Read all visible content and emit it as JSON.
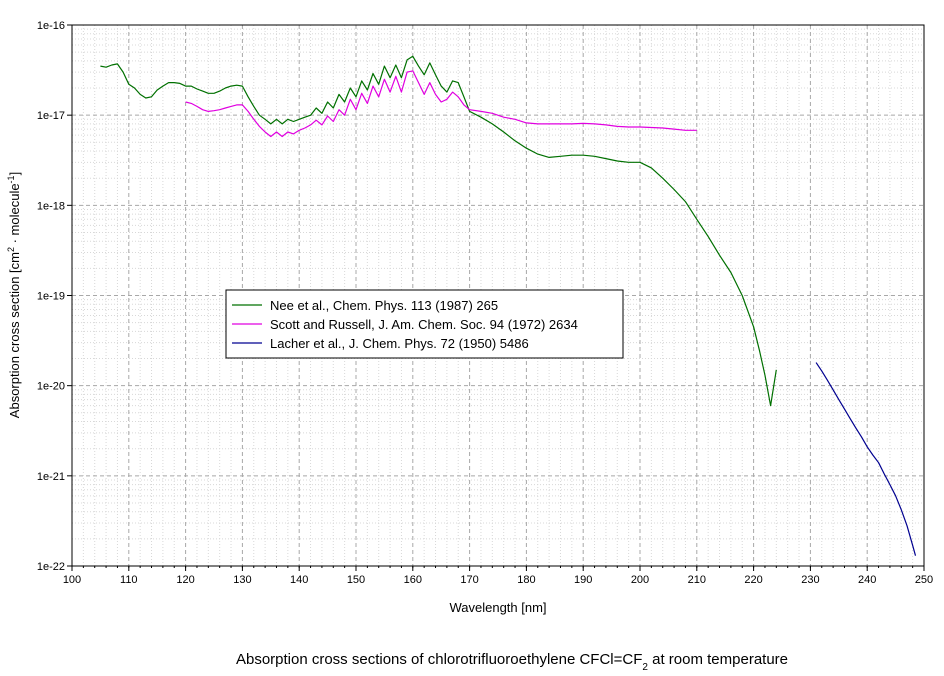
{
  "chart_data": {
    "type": "line",
    "xlabel": "Wavelength [nm]",
    "ylabel": {
      "parts": [
        {
          "text": "Absorption cross section [cm"
        },
        {
          "text": "2",
          "sup": true
        },
        {
          "text": " · molecule"
        },
        {
          "text": "-1",
          "sup": true
        },
        {
          "text": "]"
        }
      ]
    },
    "caption": {
      "parts": [
        {
          "text": "Absorption cross sections of chlorotrifluoroethylene CFCl=CF"
        },
        {
          "text": "2",
          "sub": true
        },
        {
          "text": " at room temperature"
        }
      ]
    },
    "x_axis": {
      "min": 100,
      "max": 250,
      "major_step": 10,
      "minor_step": 2,
      "ticks": [
        "100",
        "110",
        "120",
        "130",
        "140",
        "150",
        "160",
        "170",
        "180",
        "190",
        "200",
        "210",
        "220",
        "230",
        "240",
        "250"
      ]
    },
    "y_axis": {
      "scale": "log",
      "min_exp": -22,
      "max_exp": -16,
      "ticks": [
        "1e-22",
        "1e-21",
        "1e-20",
        "1e-19",
        "1e-18",
        "1e-17",
        "1e-16"
      ]
    },
    "grid": true,
    "legend": {
      "placement": "center-left",
      "entries": [
        {
          "label": "Nee et al., Chem. Phys. 113 (1987) 265",
          "color": "#007000"
        },
        {
          "label": "Scott and Russell, J. Am. Chem. Soc. 94 (1972) 2634",
          "color": "#E000E0"
        },
        {
          "label": "Lacher et al., J. Chem. Phys. 72 (1950) 5486",
          "color": "#000090"
        }
      ]
    },
    "series": [
      {
        "name": "Nee et al., Chem. Phys. 113 (1987) 265",
        "color": "#007000",
        "x": [
          105,
          106,
          107,
          108,
          109,
          110,
          111,
          112,
          113,
          114,
          115,
          116,
          117,
          118,
          119,
          120,
          121,
          122,
          123,
          124,
          125,
          126,
          127,
          128,
          129,
          130,
          131,
          132,
          133,
          134,
          135,
          136,
          137,
          138,
          139,
          140,
          141,
          142,
          143,
          144,
          145,
          146,
          147,
          148,
          149,
          150,
          151,
          152,
          153,
          154,
          155,
          156,
          157,
          158,
          159,
          160,
          161,
          162,
          163,
          164,
          165,
          166,
          167,
          168,
          169,
          170,
          172,
          174,
          176,
          178,
          180,
          182,
          184,
          186,
          188,
          190,
          192,
          194,
          196,
          198,
          200,
          202,
          204,
          206,
          208,
          210,
          212,
          214,
          216,
          218,
          220,
          221,
          222,
          223,
          224
        ],
        "y": [
          3.5e-17,
          3.4e-17,
          3.6e-17,
          3.7e-17,
          3e-17,
          2.2e-17,
          2e-17,
          1.7e-17,
          1.55e-17,
          1.6e-17,
          1.9e-17,
          2.1e-17,
          2.3e-17,
          2.3e-17,
          2.25e-17,
          2.1e-17,
          2.1e-17,
          1.95e-17,
          1.85e-17,
          1.75e-17,
          1.75e-17,
          1.85e-17,
          2e-17,
          2.1e-17,
          2.15e-17,
          2.1e-17,
          1.6e-17,
          1.25e-17,
          1e-17,
          9e-18,
          8e-18,
          9e-18,
          8e-18,
          9e-18,
          8.5e-18,
          9e-18,
          9.5e-18,
          1e-17,
          1.2e-17,
          1.05e-17,
          1.4e-17,
          1.2e-17,
          1.7e-17,
          1.4e-17,
          2e-17,
          1.6e-17,
          2.4e-17,
          1.9e-17,
          2.9e-17,
          2.2e-17,
          3.5e-17,
          2.6e-17,
          3.6e-17,
          2.6e-17,
          4.1e-17,
          4.5e-17,
          3.5e-17,
          2.8e-17,
          3.8e-17,
          2.8e-17,
          2.1e-17,
          1.8e-17,
          2.4e-17,
          2.3e-17,
          1.6e-17,
          1.1e-17,
          9.5e-18,
          8e-18,
          6.5e-18,
          5.2e-18,
          4.3e-18,
          3.7e-18,
          3.4e-18,
          3.5e-18,
          3.6e-18,
          3.6e-18,
          3.5e-18,
          3.3e-18,
          3.1e-18,
          3e-18,
          3e-18,
          2.6e-18,
          2e-18,
          1.5e-18,
          1.1e-18,
          7e-19,
          4.5e-19,
          2.8e-19,
          1.8e-19,
          1e-19,
          4.5e-20,
          2.5e-20,
          1.3e-20,
          6e-21,
          1.5e-20
        ]
      },
      {
        "name": "Scott and Russell, J. Am. Chem. Soc. 94 (1972) 2634",
        "color": "#E000E0",
        "x": [
          120,
          121,
          122,
          123,
          124,
          125,
          126,
          127,
          128,
          129,
          130,
          131,
          132,
          133,
          134,
          135,
          136,
          137,
          138,
          139,
          140,
          141,
          142,
          143,
          144,
          145,
          146,
          147,
          148,
          149,
          150,
          151,
          152,
          153,
          154,
          155,
          156,
          157,
          158,
          159,
          160,
          161,
          162,
          163,
          164,
          165,
          166,
          167,
          168,
          169,
          170,
          172,
          174,
          176,
          178,
          180,
          182,
          184,
          186,
          188,
          190,
          192,
          194,
          196,
          198,
          200,
          202,
          204,
          206,
          208,
          210
        ],
        "y": [
          1.4e-17,
          1.35e-17,
          1.25e-17,
          1.15e-17,
          1.1e-17,
          1.12e-17,
          1.15e-17,
          1.2e-17,
          1.25e-17,
          1.3e-17,
          1.3e-17,
          1.1e-17,
          9e-18,
          7.5e-18,
          6.5e-18,
          5.8e-18,
          6.5e-18,
          5.8e-18,
          6.5e-18,
          6.2e-18,
          6.8e-18,
          7.2e-18,
          7.8e-18,
          8.8e-18,
          7.8e-18,
          9.8e-18,
          8.5e-18,
          1.15e-17,
          1e-17,
          1.5e-17,
          1.15e-17,
          1.75e-17,
          1.35e-17,
          2.1e-17,
          1.6e-17,
          2.5e-17,
          1.8e-17,
          2.7e-17,
          1.8e-17,
          3e-17,
          3.1e-17,
          2.3e-17,
          1.7e-17,
          2.3e-17,
          1.7e-17,
          1.4e-17,
          1.5e-17,
          1.8e-17,
          1.6e-17,
          1.3e-17,
          1.15e-17,
          1.1e-17,
          1.05e-17,
          9.5e-18,
          9e-18,
          8.2e-18,
          8e-18,
          8e-18,
          8e-18,
          8e-18,
          8.1e-18,
          8e-18,
          7.8e-18,
          7.5e-18,
          7.4e-18,
          7.4e-18,
          7.3e-18,
          7.2e-18,
          7e-18,
          6.8e-18,
          6.8e-18
        ]
      },
      {
        "name": "Lacher et al., J. Chem. Phys. 72 (1950) 5486",
        "color": "#000090",
        "x": [
          231,
          232,
          233,
          234,
          235,
          236,
          237,
          238,
          239,
          240,
          241,
          242,
          243,
          244,
          245,
          246,
          247,
          248,
          248.5
        ],
        "y": [
          1.8e-20,
          1.45e-20,
          1.15e-20,
          9e-21,
          7e-21,
          5.5e-21,
          4.3e-21,
          3.4e-21,
          2.7e-21,
          2.1e-21,
          1.7e-21,
          1.4e-21,
          1.05e-21,
          8e-22,
          6e-22,
          4.2e-22,
          2.8e-22,
          1.7e-22,
          1.3e-22
        ]
      }
    ]
  }
}
